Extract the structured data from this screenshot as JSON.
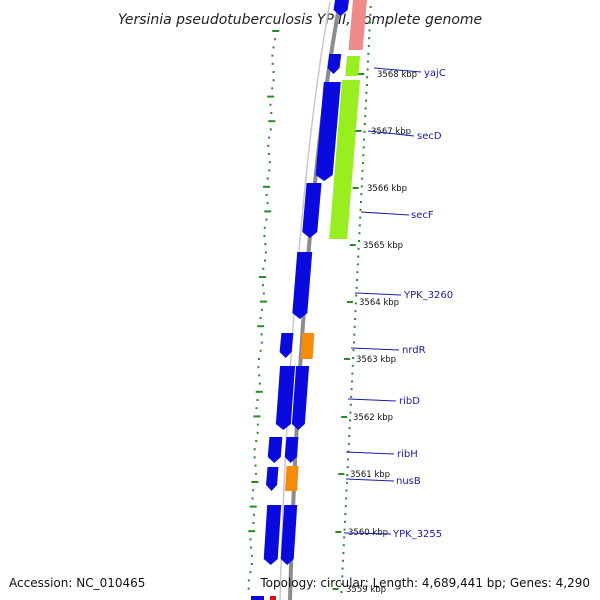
{
  "title": "Yersinia pseudotuberculosis YPIII, complete genome",
  "footer": {
    "accession": "Accession: NC_010465",
    "topology": "Topology: circular; Length: 4,689,441 bp; Genes: 4,290"
  },
  "colors": {
    "cds": "#0a0adf",
    "highlight_orange": "#f58a0b",
    "highlight_green": "#99ee22",
    "highlight_pink": "#ee8a8a",
    "backbone": "#8c8c8c",
    "gc_dots": "#2a8a2a",
    "label_blue": "#1a1aa8"
  },
  "kbp_ticks": [
    "3568 kbp",
    "3567 kbp",
    "3566 kbp",
    "3565 kbp",
    "3564 kbp",
    "3563 kbp",
    "3562 kbp",
    "3561 kbp",
    "3560 kbp",
    "3559 kbp"
  ],
  "genes": [
    {
      "name": "yajC"
    },
    {
      "name": "secD"
    },
    {
      "name": "secF"
    },
    {
      "name": "YPK_3260"
    },
    {
      "name": "nrdR"
    },
    {
      "name": "ribD"
    },
    {
      "name": "ribH"
    },
    {
      "name": "nusB"
    },
    {
      "name": "YPK_3255"
    }
  ]
}
